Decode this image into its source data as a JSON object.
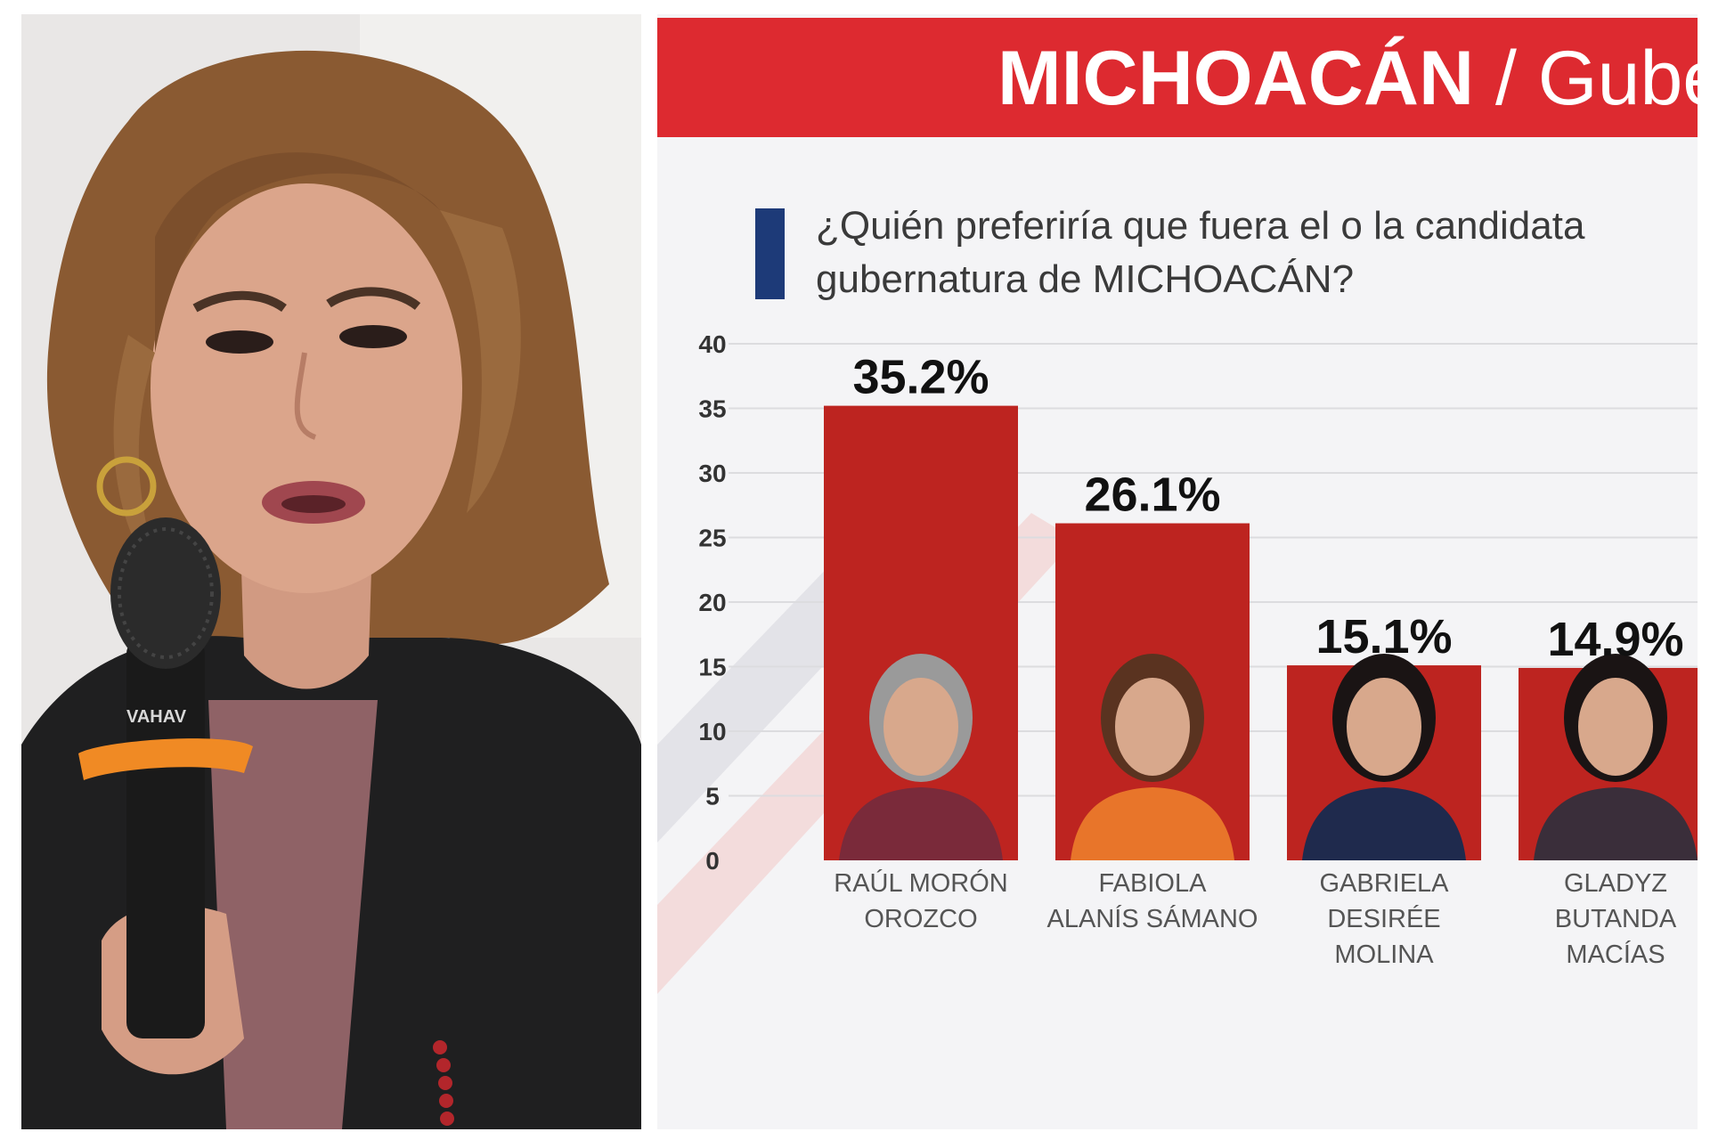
{
  "colors": {
    "banner": "#dd2a30",
    "bar": "#bd2420",
    "marker": "#1d3a78",
    "chart_background": "#f4f4f6",
    "gridline": "#dcdcdf"
  },
  "photo": {
    "icon": "woman-speaking-with-microphone-photo",
    "microphone_brand": "VAHAV"
  },
  "banner": {
    "region": "MICHOACÁN",
    "separator": " / Gube"
  },
  "question": {
    "line1": "¿Quién preferiría que fuera el o la candidata",
    "line2": "gubernatura de MICHOACÁN?"
  },
  "chart_data": {
    "type": "bar",
    "title": "",
    "xlabel": "",
    "ylabel": "",
    "ylim": [
      0,
      40
    ],
    "yticks": [
      0,
      5,
      10,
      15,
      20,
      25,
      30,
      35,
      40
    ],
    "grid": true,
    "categories": [
      [
        "RAÚL MORÓN",
        "OROZCO"
      ],
      [
        "FABIOLA",
        "ALANÍS SÁMANO"
      ],
      [
        "GABRIELA",
        "DESIRÉE",
        "MOLINA"
      ],
      [
        "GLADYZ",
        "BUTANDA",
        "MACÍAS"
      ]
    ],
    "values": [
      35.2,
      26.1,
      15.1,
      14.9
    ],
    "value_labels": [
      "35.2%",
      "26.1%",
      "15.1%",
      "14.9%"
    ],
    "portraits": [
      "candidate-portrait-raul-moron-orozco",
      "candidate-portrait-fabiola-alanis-samano",
      "candidate-portrait-gabriela-desiree-molina",
      "candidate-portrait-gladyz-butanda-macias"
    ]
  }
}
